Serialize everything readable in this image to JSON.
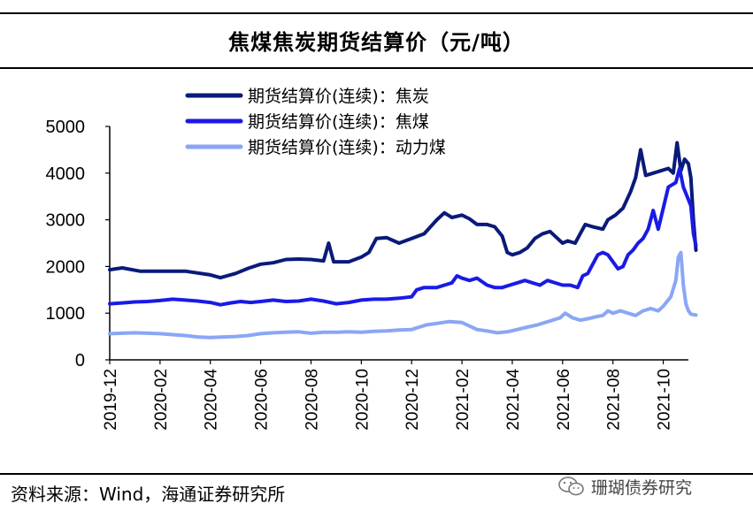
{
  "header": {
    "title": "焦煤焦炭期货结算价（元/吨）"
  },
  "footer": {
    "source": "资料来源：Wind，海通证券研究所"
  },
  "watermark": {
    "text": "珊瑚债券研究",
    "icon": "wechat-icon"
  },
  "chart_data": {
    "type": "line",
    "title": "焦煤焦炭期货结算价（元/吨）",
    "xlabel": "",
    "ylabel": "",
    "ylim": [
      0,
      5000
    ],
    "yticks": [
      0,
      1000,
      2000,
      3000,
      4000,
      5000
    ],
    "x_tick_labels": [
      "2019-12",
      "2020-02",
      "2020-04",
      "2020-06",
      "2020-08",
      "2020-10",
      "2020-12",
      "2021-02",
      "2021-04",
      "2021-06",
      "2021-08",
      "2021-10"
    ],
    "x_range": [
      0,
      23
    ],
    "legend_position": "top-left",
    "series": [
      {
        "name": "期货结算价(连续)：焦炭",
        "color": "#0a1a7a",
        "points": [
          [
            0,
            1930
          ],
          [
            0.5,
            1970
          ],
          [
            1.2,
            1900
          ],
          [
            2,
            1900
          ],
          [
            3,
            1900
          ],
          [
            4,
            1820
          ],
          [
            4.4,
            1760
          ],
          [
            5,
            1850
          ],
          [
            5.5,
            1960
          ],
          [
            6,
            2050
          ],
          [
            6.5,
            2080
          ],
          [
            7,
            2150
          ],
          [
            7.5,
            2160
          ],
          [
            8,
            2150
          ],
          [
            8.5,
            2120
          ],
          [
            8.7,
            2500
          ],
          [
            8.9,
            2100
          ],
          [
            9.5,
            2100
          ],
          [
            10,
            2200
          ],
          [
            10.3,
            2300
          ],
          [
            10.6,
            2600
          ],
          [
            11,
            2620
          ],
          [
            11.5,
            2500
          ],
          [
            12,
            2600
          ],
          [
            12.5,
            2700
          ],
          [
            13,
            3000
          ],
          [
            13.3,
            3150
          ],
          [
            13.6,
            3050
          ],
          [
            14,
            3100
          ],
          [
            14.3,
            3020
          ],
          [
            14.6,
            2900
          ],
          [
            15,
            2900
          ],
          [
            15.3,
            2850
          ],
          [
            15.6,
            2650
          ],
          [
            15.8,
            2300
          ],
          [
            16,
            2250
          ],
          [
            16.3,
            2300
          ],
          [
            16.6,
            2400
          ],
          [
            16.9,
            2600
          ],
          [
            17.2,
            2700
          ],
          [
            17.5,
            2750
          ],
          [
            17.8,
            2600
          ],
          [
            18,
            2500
          ],
          [
            18.2,
            2550
          ],
          [
            18.5,
            2500
          ],
          [
            18.7,
            2700
          ],
          [
            18.9,
            2900
          ],
          [
            19.2,
            2850
          ],
          [
            19.6,
            2800
          ],
          [
            19.8,
            3000
          ],
          [
            20.1,
            3100
          ],
          [
            20.4,
            3250
          ],
          [
            20.7,
            3600
          ],
          [
            20.9,
            3900
          ],
          [
            21.1,
            4500
          ],
          [
            21.3,
            3950
          ],
          [
            21.6,
            4000
          ],
          [
            21.9,
            4050
          ],
          [
            22.2,
            4100
          ],
          [
            22.4,
            4000
          ],
          [
            22.55,
            4650
          ],
          [
            22.7,
            4050
          ],
          [
            22.85,
            4300
          ],
          [
            23,
            4200
          ],
          [
            23.1,
            3900
          ],
          [
            23.2,
            3000
          ],
          [
            23.3,
            2350
          ]
        ]
      },
      {
        "name": "期货结算价(连续)：焦煤",
        "color": "#1a1ae6",
        "points": [
          [
            0,
            1200
          ],
          [
            0.5,
            1220
          ],
          [
            1,
            1240
          ],
          [
            1.5,
            1250
          ],
          [
            2,
            1270
          ],
          [
            2.5,
            1300
          ],
          [
            3,
            1280
          ],
          [
            3.5,
            1260
          ],
          [
            4,
            1230
          ],
          [
            4.4,
            1180
          ],
          [
            4.8,
            1220
          ],
          [
            5.2,
            1250
          ],
          [
            5.6,
            1230
          ],
          [
            6,
            1250
          ],
          [
            6.5,
            1280
          ],
          [
            7,
            1250
          ],
          [
            7.5,
            1260
          ],
          [
            8,
            1300
          ],
          [
            8.5,
            1260
          ],
          [
            9,
            1200
          ],
          [
            9.5,
            1230
          ],
          [
            10,
            1280
          ],
          [
            10.5,
            1300
          ],
          [
            11,
            1300
          ],
          [
            11.5,
            1320
          ],
          [
            12,
            1350
          ],
          [
            12.2,
            1500
          ],
          [
            12.5,
            1550
          ],
          [
            13,
            1550
          ],
          [
            13.3,
            1600
          ],
          [
            13.6,
            1650
          ],
          [
            13.8,
            1800
          ],
          [
            14,
            1750
          ],
          [
            14.3,
            1700
          ],
          [
            14.6,
            1750
          ],
          [
            15,
            1600
          ],
          [
            15.3,
            1550
          ],
          [
            15.6,
            1550
          ],
          [
            15.9,
            1600
          ],
          [
            16.2,
            1650
          ],
          [
            16.5,
            1700
          ],
          [
            16.8,
            1650
          ],
          [
            17.1,
            1600
          ],
          [
            17.4,
            1700
          ],
          [
            17.7,
            1650
          ],
          [
            18,
            1600
          ],
          [
            18.3,
            1600
          ],
          [
            18.6,
            1550
          ],
          [
            18.8,
            1800
          ],
          [
            19,
            1850
          ],
          [
            19.2,
            2050
          ],
          [
            19.4,
            2250
          ],
          [
            19.6,
            2300
          ],
          [
            19.8,
            2250
          ],
          [
            20,
            2100
          ],
          [
            20.2,
            1950
          ],
          [
            20.4,
            2000
          ],
          [
            20.6,
            2250
          ],
          [
            20.8,
            2350
          ],
          [
            21,
            2500
          ],
          [
            21.2,
            2600
          ],
          [
            21.4,
            2800
          ],
          [
            21.6,
            3200
          ],
          [
            21.8,
            2800
          ],
          [
            22,
            3250
          ],
          [
            22.2,
            3700
          ],
          [
            22.5,
            3800
          ],
          [
            22.65,
            4100
          ],
          [
            22.8,
            3700
          ],
          [
            22.95,
            3500
          ],
          [
            23.1,
            3300
          ],
          [
            23.2,
            2700
          ],
          [
            23.3,
            2450
          ]
        ]
      },
      {
        "name": "期货结算价(连续)：动力煤",
        "color": "#8aa6f5",
        "points": [
          [
            0,
            560
          ],
          [
            0.5,
            570
          ],
          [
            1,
            580
          ],
          [
            1.5,
            570
          ],
          [
            2,
            560
          ],
          [
            2.5,
            540
          ],
          [
            3,
            520
          ],
          [
            3.5,
            490
          ],
          [
            4,
            480
          ],
          [
            4.5,
            490
          ],
          [
            5,
            500
          ],
          [
            5.5,
            520
          ],
          [
            6,
            560
          ],
          [
            6.5,
            580
          ],
          [
            7,
            590
          ],
          [
            7.5,
            600
          ],
          [
            8,
            570
          ],
          [
            8.5,
            590
          ],
          [
            9,
            590
          ],
          [
            9.5,
            600
          ],
          [
            10,
            590
          ],
          [
            10.5,
            610
          ],
          [
            11,
            620
          ],
          [
            11.5,
            640
          ],
          [
            12,
            650
          ],
          [
            12.3,
            700
          ],
          [
            12.6,
            750
          ],
          [
            13,
            780
          ],
          [
            13.5,
            820
          ],
          [
            14,
            800
          ],
          [
            14.2,
            750
          ],
          [
            14.6,
            650
          ],
          [
            15,
            620
          ],
          [
            15.4,
            580
          ],
          [
            15.8,
            600
          ],
          [
            16.2,
            650
          ],
          [
            16.6,
            700
          ],
          [
            17,
            750
          ],
          [
            17.3,
            800
          ],
          [
            17.6,
            850
          ],
          [
            17.9,
            900
          ],
          [
            18.1,
            1000
          ],
          [
            18.4,
            900
          ],
          [
            18.7,
            850
          ],
          [
            19,
            880
          ],
          [
            19.3,
            920
          ],
          [
            19.6,
            950
          ],
          [
            19.8,
            1050
          ],
          [
            20,
            1000
          ],
          [
            20.3,
            1050
          ],
          [
            20.6,
            1000
          ],
          [
            20.9,
            950
          ],
          [
            21.2,
            1050
          ],
          [
            21.5,
            1100
          ],
          [
            21.8,
            1050
          ],
          [
            22,
            1150
          ],
          [
            22.3,
            1350
          ],
          [
            22.5,
            1700
          ],
          [
            22.6,
            2200
          ],
          [
            22.7,
            2300
          ],
          [
            22.8,
            1600
          ],
          [
            22.9,
            1200
          ],
          [
            23,
            1050
          ],
          [
            23.1,
            980
          ],
          [
            23.3,
            960
          ]
        ]
      }
    ]
  }
}
